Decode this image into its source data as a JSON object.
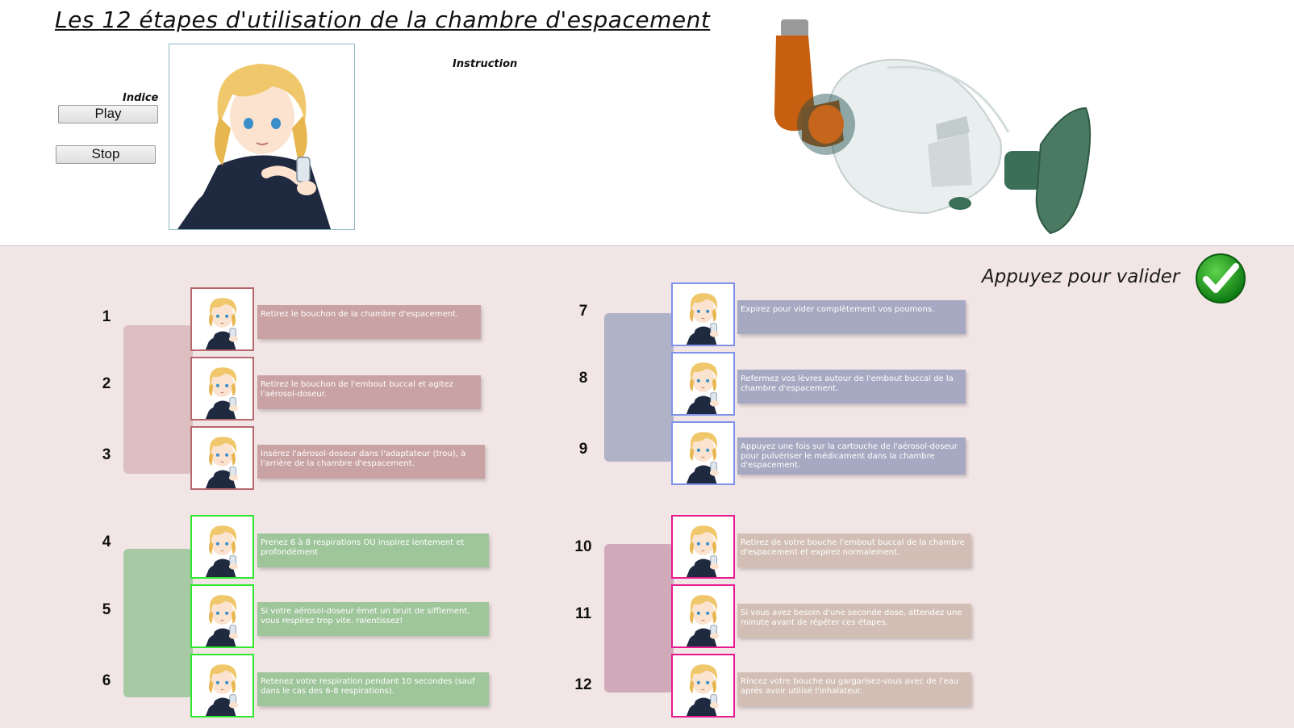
{
  "title": "Les 12 étapes d'utilisation de la chambre d'espacement",
  "indice_label": "Indice",
  "play_label": "Play",
  "stop_label": "Stop",
  "instruction_label": "Instruction",
  "validate_label": "Appuyez pour valider",
  "colors": {
    "group_red": "#c9a2a3",
    "group_blue": "#a7a9c2",
    "group_green": "#9fc59b",
    "group_tan": "#d2beb5",
    "border_red": "#b5676b",
    "border_blue": "#7f93ea",
    "border_green": "#2ee82e",
    "border_pink": "#e8198f"
  },
  "steps": [
    {
      "num": "1",
      "text": "Retirez le bouchon de la chambre d'espacement."
    },
    {
      "num": "2",
      "text": "Retirez le bouchon de l'embout buccal et agitez l'aérosol-doseur."
    },
    {
      "num": "3",
      "text": "Insérez l'aérosol-doseur dans l'adaptateur (trou), à l'arrière de la chambre d'espacement."
    },
    {
      "num": "4",
      "text": "Prenez 6 à 8 respirations OU inspirez lentement et profondément"
    },
    {
      "num": "5",
      "text": "Si votre aérosol-doseur émet un bruit de sifflement, vous respirez trop vite. ralentissez!"
    },
    {
      "num": "6",
      "text": "Retenez votre respiration pendant 10 secondes (sauf dans le cas des 6-8 respirations)."
    },
    {
      "num": "7",
      "text": "Expirez pour vider complètement vos poumons."
    },
    {
      "num": "8",
      "text": "Refermez vos lèvres autour de l'embout buccal de la chambre d'espacement."
    },
    {
      "num": "9",
      "text": "Appuyez une fois sur la cartouche de l'aérosol-doseur pour pulvériser le médicament dans la chambre d'espacement."
    },
    {
      "num": "10",
      "text": "Retirez de votre bouche l'embout buccal de la chambre d'espacement et expirez normalement."
    },
    {
      "num": "11",
      "text": "Si vous avez besoin d'une seconde dose, attendez une minute avant de répéter ces étapes."
    },
    {
      "num": "12",
      "text": "Rincez votre bouche ou gargarisez-vous avec de l'eau après avoir utilisé l'inhalateur."
    }
  ]
}
